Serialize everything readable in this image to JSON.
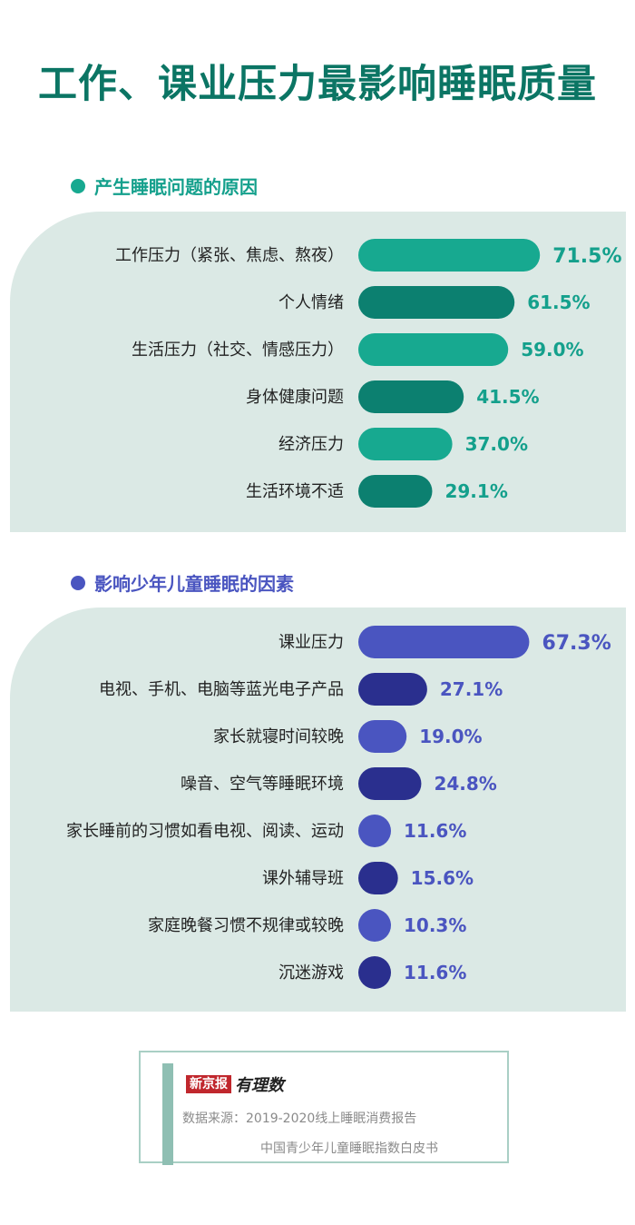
{
  "page": {
    "title": "工作、课业压力最影响睡眠质量"
  },
  "colors": {
    "title": "#0b7564",
    "panel_bg": "#dbe9e5",
    "teal_light": "#17a990",
    "teal_dark": "#0c8070",
    "teal_text": "#14a08c",
    "blue_light": "#4a55c0",
    "blue_dark": "#2a2f8e",
    "blue_text": "#4a55c0"
  },
  "chart_data": [
    {
      "type": "bar",
      "orientation": "horizontal",
      "title": "产生睡眠问题的原因",
      "categories": [
        "工作压力（紧张、焦虑、熬夜）",
        "个人情绪",
        "生活压力（社交、情感压力）",
        "身体健康问题",
        "经济压力",
        "生活环境不适"
      ],
      "values": [
        71.5,
        61.5,
        59.0,
        41.5,
        37.0,
        29.1
      ],
      "value_labels": [
        "71.5%",
        "61.5%",
        "59.0%",
        "41.5%",
        "37.0%",
        "29.1%"
      ],
      "unit": "%"
    },
    {
      "type": "bar",
      "orientation": "horizontal",
      "title": "影响少年儿童睡眠的因素",
      "categories": [
        "课业压力",
        "电视、手机、电脑等蓝光电子产品",
        "家长就寝时间较晚",
        "噪音、空气等睡眠环境",
        "家长睡前的习惯如看电视、阅读、运动",
        "课外辅导班",
        "家庭晚餐习惯不规律或较晚",
        "沉迷游戏"
      ],
      "values": [
        67.3,
        27.1,
        19.0,
        24.8,
        11.6,
        15.6,
        10.3,
        11.6
      ],
      "value_labels": [
        "67.3%",
        "27.1%",
        "19.0%",
        "24.8%",
        "11.6%",
        "15.6%",
        "10.3%",
        "11.6%"
      ],
      "unit": "%"
    }
  ],
  "source": {
    "logo_main": "新京报",
    "logo_sub": "有理数",
    "line1": "数据来源：2019-2020线上睡眠消费报告",
    "line2": "中国青少年儿童睡眠指数白皮书"
  }
}
